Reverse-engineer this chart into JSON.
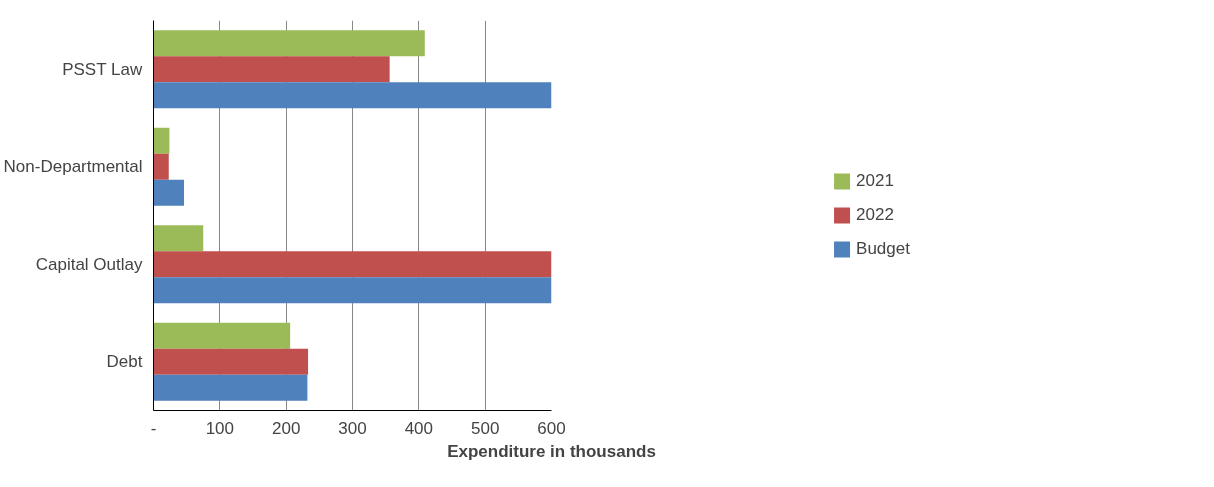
{
  "chart_data": {
    "type": "bar",
    "orientation": "horizontal",
    "xlabel": "Expenditure in thousands",
    "categories": [
      "PSST Law",
      "Non-Departmental",
      "Capital Outlay",
      "Debt"
    ],
    "series": [
      {
        "name": "2021",
        "color": "#9bbb59",
        "values": [
          409,
          24,
          75,
          206
        ]
      },
      {
        "name": "2022",
        "color": "#c0504d",
        "values": [
          356,
          23,
          600,
          233
        ]
      },
      {
        "name": "Budget",
        "color": "#4f81bd",
        "values": [
          600,
          46,
          600,
          232
        ]
      }
    ],
    "xlim": [
      0,
      600
    ],
    "xticks": [
      {
        "value": 0,
        "label": "-"
      },
      100,
      200,
      300,
      400,
      500,
      600
    ],
    "grid": "x",
    "legend": "right"
  }
}
